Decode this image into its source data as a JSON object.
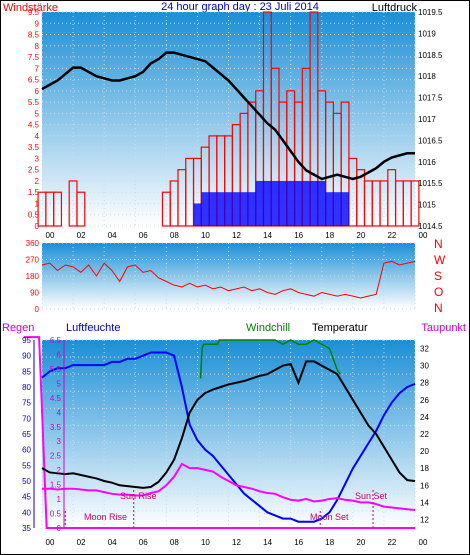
{
  "header": {
    "left_label": "Windstärke",
    "title": "24 hour graph day : 23 Juli 2014",
    "right_label": "Luftdruck"
  },
  "x_axis": {
    "tick_labels": [
      "00",
      "02",
      "04",
      "06",
      "08",
      "10",
      "12",
      "14",
      "16",
      "18",
      "20",
      "22",
      "00"
    ]
  },
  "panel1": {
    "y_left_ticks": [
      "0",
      "0.5",
      "1",
      "1.5",
      "2",
      "2.5",
      "3",
      "3.5",
      "4",
      "4.5",
      "5",
      "5.5",
      "6",
      "6.5",
      "7",
      "7.5",
      "8",
      "8.5",
      "9",
      "9.5"
    ],
    "y_right_ticks": [
      "1014.5",
      "1015",
      "1015.5",
      "1016",
      "1016.5",
      "1017",
      "1017.5",
      "1018",
      "1018.5",
      "1019",
      "1019.5"
    ]
  },
  "panel2": {
    "y_left_ticks": [
      "0",
      "90",
      "180",
      "270",
      "360"
    ],
    "compass": [
      "N",
      "W",
      "S",
      "O",
      "N"
    ]
  },
  "panel3": {
    "labels": {
      "regen": "Regen",
      "luftfeuchte": "Luftfeuchte",
      "windchill": "Windchill",
      "temperatur": "Temperatur",
      "taupunkt": "Taupunkt"
    },
    "humidity_ticks": [
      "35",
      "40",
      "45",
      "50",
      "55",
      "60",
      "65",
      "70",
      "75",
      "80",
      "85",
      "90",
      "95"
    ],
    "rain_ticks": [
      "0",
      "0.5",
      "1",
      "1.5",
      "2",
      "2.5",
      "3",
      "3.5",
      "4",
      "4.5",
      "5",
      "5.5",
      "6",
      "6.5"
    ],
    "temp_ticks": [
      "12",
      "14",
      "16",
      "18",
      "20",
      "22",
      "24",
      "26",
      "28",
      "30",
      "32"
    ],
    "annotations": {
      "sun_rise": "Sun Rise",
      "moon_rise": "Moon Rise",
      "moon_set": "Moon Set",
      "sun_set": "Sun Set"
    }
  },
  "colors": {
    "pressure": "#000000",
    "wind_gust": "#ff0000",
    "wind_avg": "#0000ff",
    "direction": "#ff0000",
    "humidity": "#0000ff",
    "temperature": "#000000",
    "windchill": "#008000",
    "dewpoint": "#ff00ff",
    "rain": "#ff00ff",
    "grad_top": "#1b8fd6",
    "grad_bottom": "#ffffff"
  },
  "chart_data": [
    {
      "type": "line",
      "panel": "wind_pressure",
      "xlim": [
        0,
        24
      ],
      "series": [
        {
          "name": "Luftdruck",
          "axis": "right",
          "ylim": [
            1014.5,
            1019.5
          ],
          "x": [
            0,
            0.5,
            1,
            1.5,
            2,
            2.5,
            3,
            3.5,
            4,
            4.5,
            5,
            5.5,
            6,
            6.5,
            7,
            7.5,
            8,
            8.5,
            9,
            9.5,
            10,
            10.5,
            11,
            11.5,
            12,
            12.5,
            13,
            13.5,
            14,
            14.5,
            15,
            15.5,
            16,
            16.5,
            17,
            17.5,
            18,
            18.5,
            19,
            19.5,
            20,
            20.5,
            21,
            21.5,
            22,
            22.5,
            23,
            23.5,
            24
          ],
          "y": [
            1017.7,
            1017.8,
            1017.9,
            1018.05,
            1018.2,
            1018.2,
            1018.1,
            1018.0,
            1017.95,
            1017.9,
            1017.9,
            1017.95,
            1018.0,
            1018.1,
            1018.3,
            1018.4,
            1018.55,
            1018.55,
            1018.5,
            1018.45,
            1018.4,
            1018.35,
            1018.2,
            1018.05,
            1017.9,
            1017.7,
            1017.5,
            1017.3,
            1017.1,
            1016.9,
            1016.75,
            1016.5,
            1016.25,
            1016.0,
            1015.8,
            1015.7,
            1015.6,
            1015.65,
            1015.7,
            1015.65,
            1015.6,
            1015.65,
            1015.75,
            1015.85,
            1016.0,
            1016.1,
            1016.15,
            1016.2,
            1016.2
          ]
        },
        {
          "name": "Windstärke",
          "axis": "left",
          "ylim": [
            0,
            9.5
          ],
          "gust_x": [
            0,
            0.5,
            1,
            1.5,
            2,
            2.5,
            3,
            3.5,
            4,
            4.5,
            5,
            5.5,
            6,
            6.5,
            7,
            7.5,
            8,
            8.5,
            9,
            9.5,
            10,
            10.5,
            11,
            11.5,
            12,
            12.5,
            13,
            13.5,
            14,
            14.5,
            15,
            15.5,
            16,
            16.5,
            17,
            17.5,
            18,
            18.5,
            19,
            19.5,
            20,
            20.5,
            21,
            21.5,
            22,
            22.5,
            23,
            23.5,
            24
          ],
          "gust_y": [
            1.5,
            1.5,
            1.5,
            0,
            2,
            1.5,
            0,
            0,
            0,
            0,
            0,
            0,
            0,
            0,
            0,
            0,
            1.5,
            2,
            2.5,
            3,
            3,
            3.5,
            4,
            4,
            4,
            4.5,
            5,
            5.5,
            6,
            9.5,
            7,
            5.5,
            6,
            5.5,
            7,
            9.5,
            6,
            5.5,
            5,
            5.5,
            3,
            2.5,
            2,
            2,
            2,
            2.5,
            2,
            2,
            2
          ],
          "avg_y": [
            0,
            0,
            0,
            0,
            0,
            0,
            0,
            0,
            0,
            0,
            0,
            0,
            0,
            0,
            0,
            0,
            0,
            0,
            0,
            0,
            1,
            1.5,
            1.5,
            1.5,
            1.5,
            1.5,
            1.5,
            1.5,
            2,
            2,
            2,
            2,
            2,
            2,
            2,
            2,
            2,
            1.5,
            1.5,
            1.5,
            0,
            0,
            0,
            0,
            0,
            0,
            0,
            0,
            0
          ]
        }
      ]
    },
    {
      "type": "line",
      "panel": "wind_direction",
      "xlim": [
        0,
        24
      ],
      "ylim": [
        0,
        360
      ],
      "series": [
        {
          "name": "Windrichtung",
          "x": [
            0,
            0.5,
            1,
            1.5,
            2,
            2.5,
            3,
            3.5,
            4,
            4.5,
            5,
            5.5,
            6,
            6.5,
            7,
            7.5,
            8,
            8.5,
            9,
            9.5,
            10,
            10.5,
            11,
            11.5,
            12,
            12.5,
            13,
            13.5,
            14,
            14.5,
            15,
            15.5,
            16,
            16.5,
            17,
            17.5,
            18,
            18.5,
            19,
            19.5,
            20,
            20.5,
            21,
            21.5,
            22,
            22.5,
            23,
            23.5,
            24
          ],
          "y": [
            240,
            250,
            210,
            240,
            230,
            200,
            240,
            180,
            250,
            210,
            150,
            230,
            240,
            200,
            210,
            170,
            150,
            130,
            120,
            140,
            120,
            130,
            110,
            120,
            100,
            110,
            120,
            100,
            110,
            90,
            80,
            100,
            110,
            90,
            80,
            70,
            90,
            80,
            70,
            80,
            70,
            60,
            70,
            80,
            250,
            260,
            240,
            250,
            260
          ]
        }
      ]
    },
    {
      "type": "line",
      "panel": "humidity_temperature",
      "xlim": [
        0,
        24
      ],
      "series": [
        {
          "name": "Luftfeuchte",
          "axis": "humidity",
          "ylim": [
            35,
            95
          ],
          "x": [
            0,
            0.5,
            1,
            1.5,
            2,
            2.5,
            3,
            3.5,
            4,
            4.5,
            5,
            5.5,
            6,
            6.5,
            7,
            7.5,
            8,
            8.5,
            9,
            9.5,
            10,
            10.5,
            11,
            11.5,
            12,
            12.5,
            13,
            13.5,
            14,
            14.5,
            15,
            15.5,
            16,
            16.5,
            17,
            17.5,
            18,
            18.5,
            19,
            19.5,
            20,
            20.5,
            21,
            21.5,
            22,
            22.5,
            23,
            23.5,
            24
          ],
          "y": [
            83,
            85,
            86,
            86,
            87,
            87,
            87,
            87,
            87,
            88,
            88,
            89,
            89,
            90,
            91,
            91,
            91,
            90,
            80,
            68,
            63,
            60,
            58,
            55,
            52,
            49,
            46,
            44,
            42,
            40,
            39,
            38,
            38,
            37,
            37,
            37,
            38,
            40,
            44,
            49,
            54,
            58,
            62,
            66,
            71,
            75,
            78,
            80,
            81
          ]
        },
        {
          "name": "Temperatur",
          "axis": "temp",
          "ylim": [
            11,
            33
          ],
          "x": [
            0,
            0.5,
            1,
            1.5,
            2,
            2.5,
            3,
            3.5,
            4,
            4.5,
            5,
            5.5,
            6,
            6.5,
            7,
            7.5,
            8,
            8.5,
            9,
            9.5,
            10,
            10.5,
            11,
            11.5,
            12,
            12.5,
            13,
            13.5,
            14,
            14.5,
            15,
            15.5,
            16,
            16.5,
            17,
            17.5,
            18,
            18.5,
            19,
            19.5,
            20,
            20.5,
            21,
            21.5,
            22,
            22.5,
            23,
            23.5,
            24
          ],
          "y": [
            18,
            17.5,
            17.4,
            17.3,
            17.4,
            17.2,
            17,
            16.8,
            16.5,
            16.3,
            16,
            15.9,
            15.8,
            15.7,
            15.8,
            16.4,
            17.5,
            19,
            21.5,
            24.5,
            26,
            26.8,
            27.2,
            27.5,
            27.8,
            28,
            28.2,
            28.5,
            28.8,
            29,
            29.5,
            30,
            30.2,
            28,
            30.5,
            30.5,
            30,
            29.5,
            29,
            27.5,
            26,
            24.5,
            23,
            22,
            20.5,
            19,
            17.5,
            16.6,
            16.5
          ]
        },
        {
          "name": "Windchill",
          "axis": "temp",
          "ylim": [
            11,
            33
          ],
          "x": [
            10.2,
            10.3,
            10.4,
            11.3,
            11.4,
            13.5,
            14,
            14.5,
            15,
            15.5,
            16,
            16.5,
            17,
            17.5,
            18,
            18.5,
            19,
            19.2
          ],
          "y": [
            28.5,
            32,
            32.5,
            32.5,
            33,
            33,
            33,
            33,
            33,
            32.5,
            33,
            32.5,
            32.5,
            33,
            32.5,
            32,
            29.5,
            29
          ]
        },
        {
          "name": "Taupunkt",
          "axis": "temp",
          "ylim": [
            11,
            33
          ],
          "x": [
            0,
            0.5,
            1,
            1.5,
            2,
            2.5,
            3,
            3.5,
            4,
            4.5,
            5,
            5.5,
            6,
            6.5,
            7,
            7.5,
            8,
            8.5,
            9,
            9.5,
            10,
            10.5,
            11,
            11.5,
            12,
            12.5,
            13,
            13.5,
            14,
            14.5,
            15,
            15.5,
            16,
            16.5,
            17,
            17.5,
            18,
            18.5,
            19,
            19.5,
            20,
            20.5,
            21,
            21.5,
            22,
            22.5,
            23,
            23.5,
            24
          ],
          "y": [
            15.6,
            15.6,
            15.5,
            15.6,
            15.6,
            15.5,
            15.4,
            15.4,
            15.2,
            15,
            14.9,
            14.9,
            14.8,
            14.8,
            15.1,
            15.3,
            16,
            17,
            18.5,
            18,
            18,
            17.8,
            17.6,
            17,
            16.5,
            16,
            15.8,
            15.6,
            15.3,
            15.1,
            15,
            14.6,
            14.3,
            14.2,
            14.4,
            14.1,
            14.2,
            14.4,
            14.5,
            14.3,
            14.2,
            14.0,
            14.0,
            13.8,
            13.5,
            13.4,
            13.3,
            13.2,
            13.1
          ]
        },
        {
          "name": "Regen",
          "axis": "rain",
          "ylim": [
            0,
            6.5
          ],
          "x": [
            0,
            0.2,
            0.3,
            24
          ],
          "y": [
            6.6,
            6.6,
            0,
            0
          ]
        }
      ],
      "events": {
        "sun_rise": 5.9,
        "moon_rise": 1.5,
        "moon_set": 17.9,
        "sun_set": 21.3
      }
    }
  ]
}
